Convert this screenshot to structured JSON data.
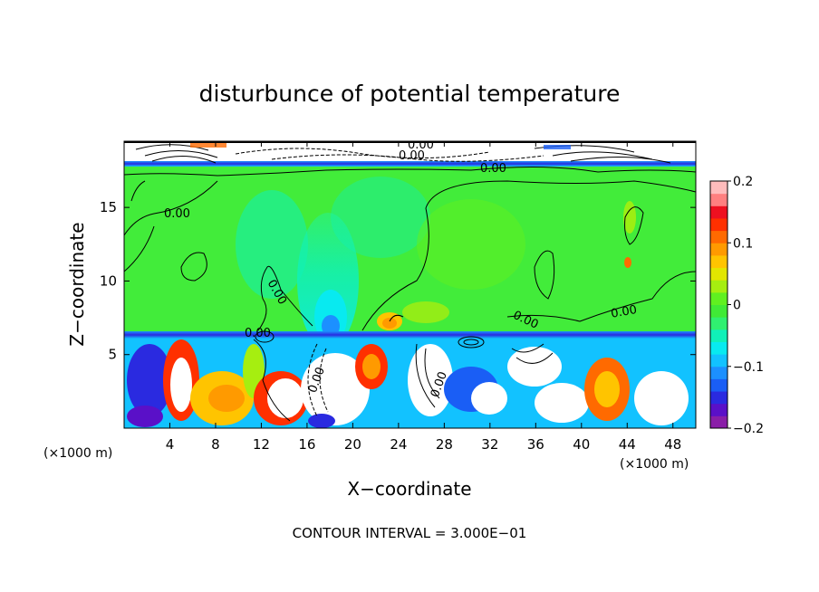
{
  "chart_data": {
    "type": "heatmap",
    "title": "disturbunce of potential temperature",
    "xlabel": "X−coordinate",
    "ylabel": "Z−coordinate",
    "x_unit_left": "(×1000 m)",
    "x_unit_right": "(×1000 m)",
    "xlim": [
      0,
      50
    ],
    "ylim": [
      0,
      19.5
    ],
    "x_ticks": [
      4,
      8,
      12,
      16,
      20,
      24,
      28,
      32,
      36,
      40,
      44,
      48
    ],
    "y_ticks": [
      5,
      10,
      15
    ],
    "colorbar": {
      "range": [
        -0.2,
        0.2
      ],
      "ticks": [
        "0.2",
        "0.1",
        "0",
        "−0.1",
        "−0.2"
      ],
      "tick_values": [
        0.2,
        0.1,
        0,
        -0.1,
        -0.2
      ],
      "colors": [
        "#8a1ea8",
        "#5a10c8",
        "#2a2ae0",
        "#1a5ef5",
        "#1c90ff",
        "#12c2ff",
        "#08eaf0",
        "#10f0b8",
        "#30f070",
        "#40ea36",
        "#60f020",
        "#a6ee10",
        "#e2e600",
        "#ffc400",
        "#ff9a00",
        "#ff6a00",
        "#ff3000",
        "#ee1020",
        "#ff8080",
        "#ffbcbc"
      ]
    },
    "contour_labels": [
      "0.00",
      "0.00",
      "0.00",
      "0.00",
      "0.00",
      "0.00",
      "0.00",
      "0.00",
      "0.00",
      "0.00"
    ],
    "footer": "CONTOUR INTERVAL = 3.000E−01"
  }
}
